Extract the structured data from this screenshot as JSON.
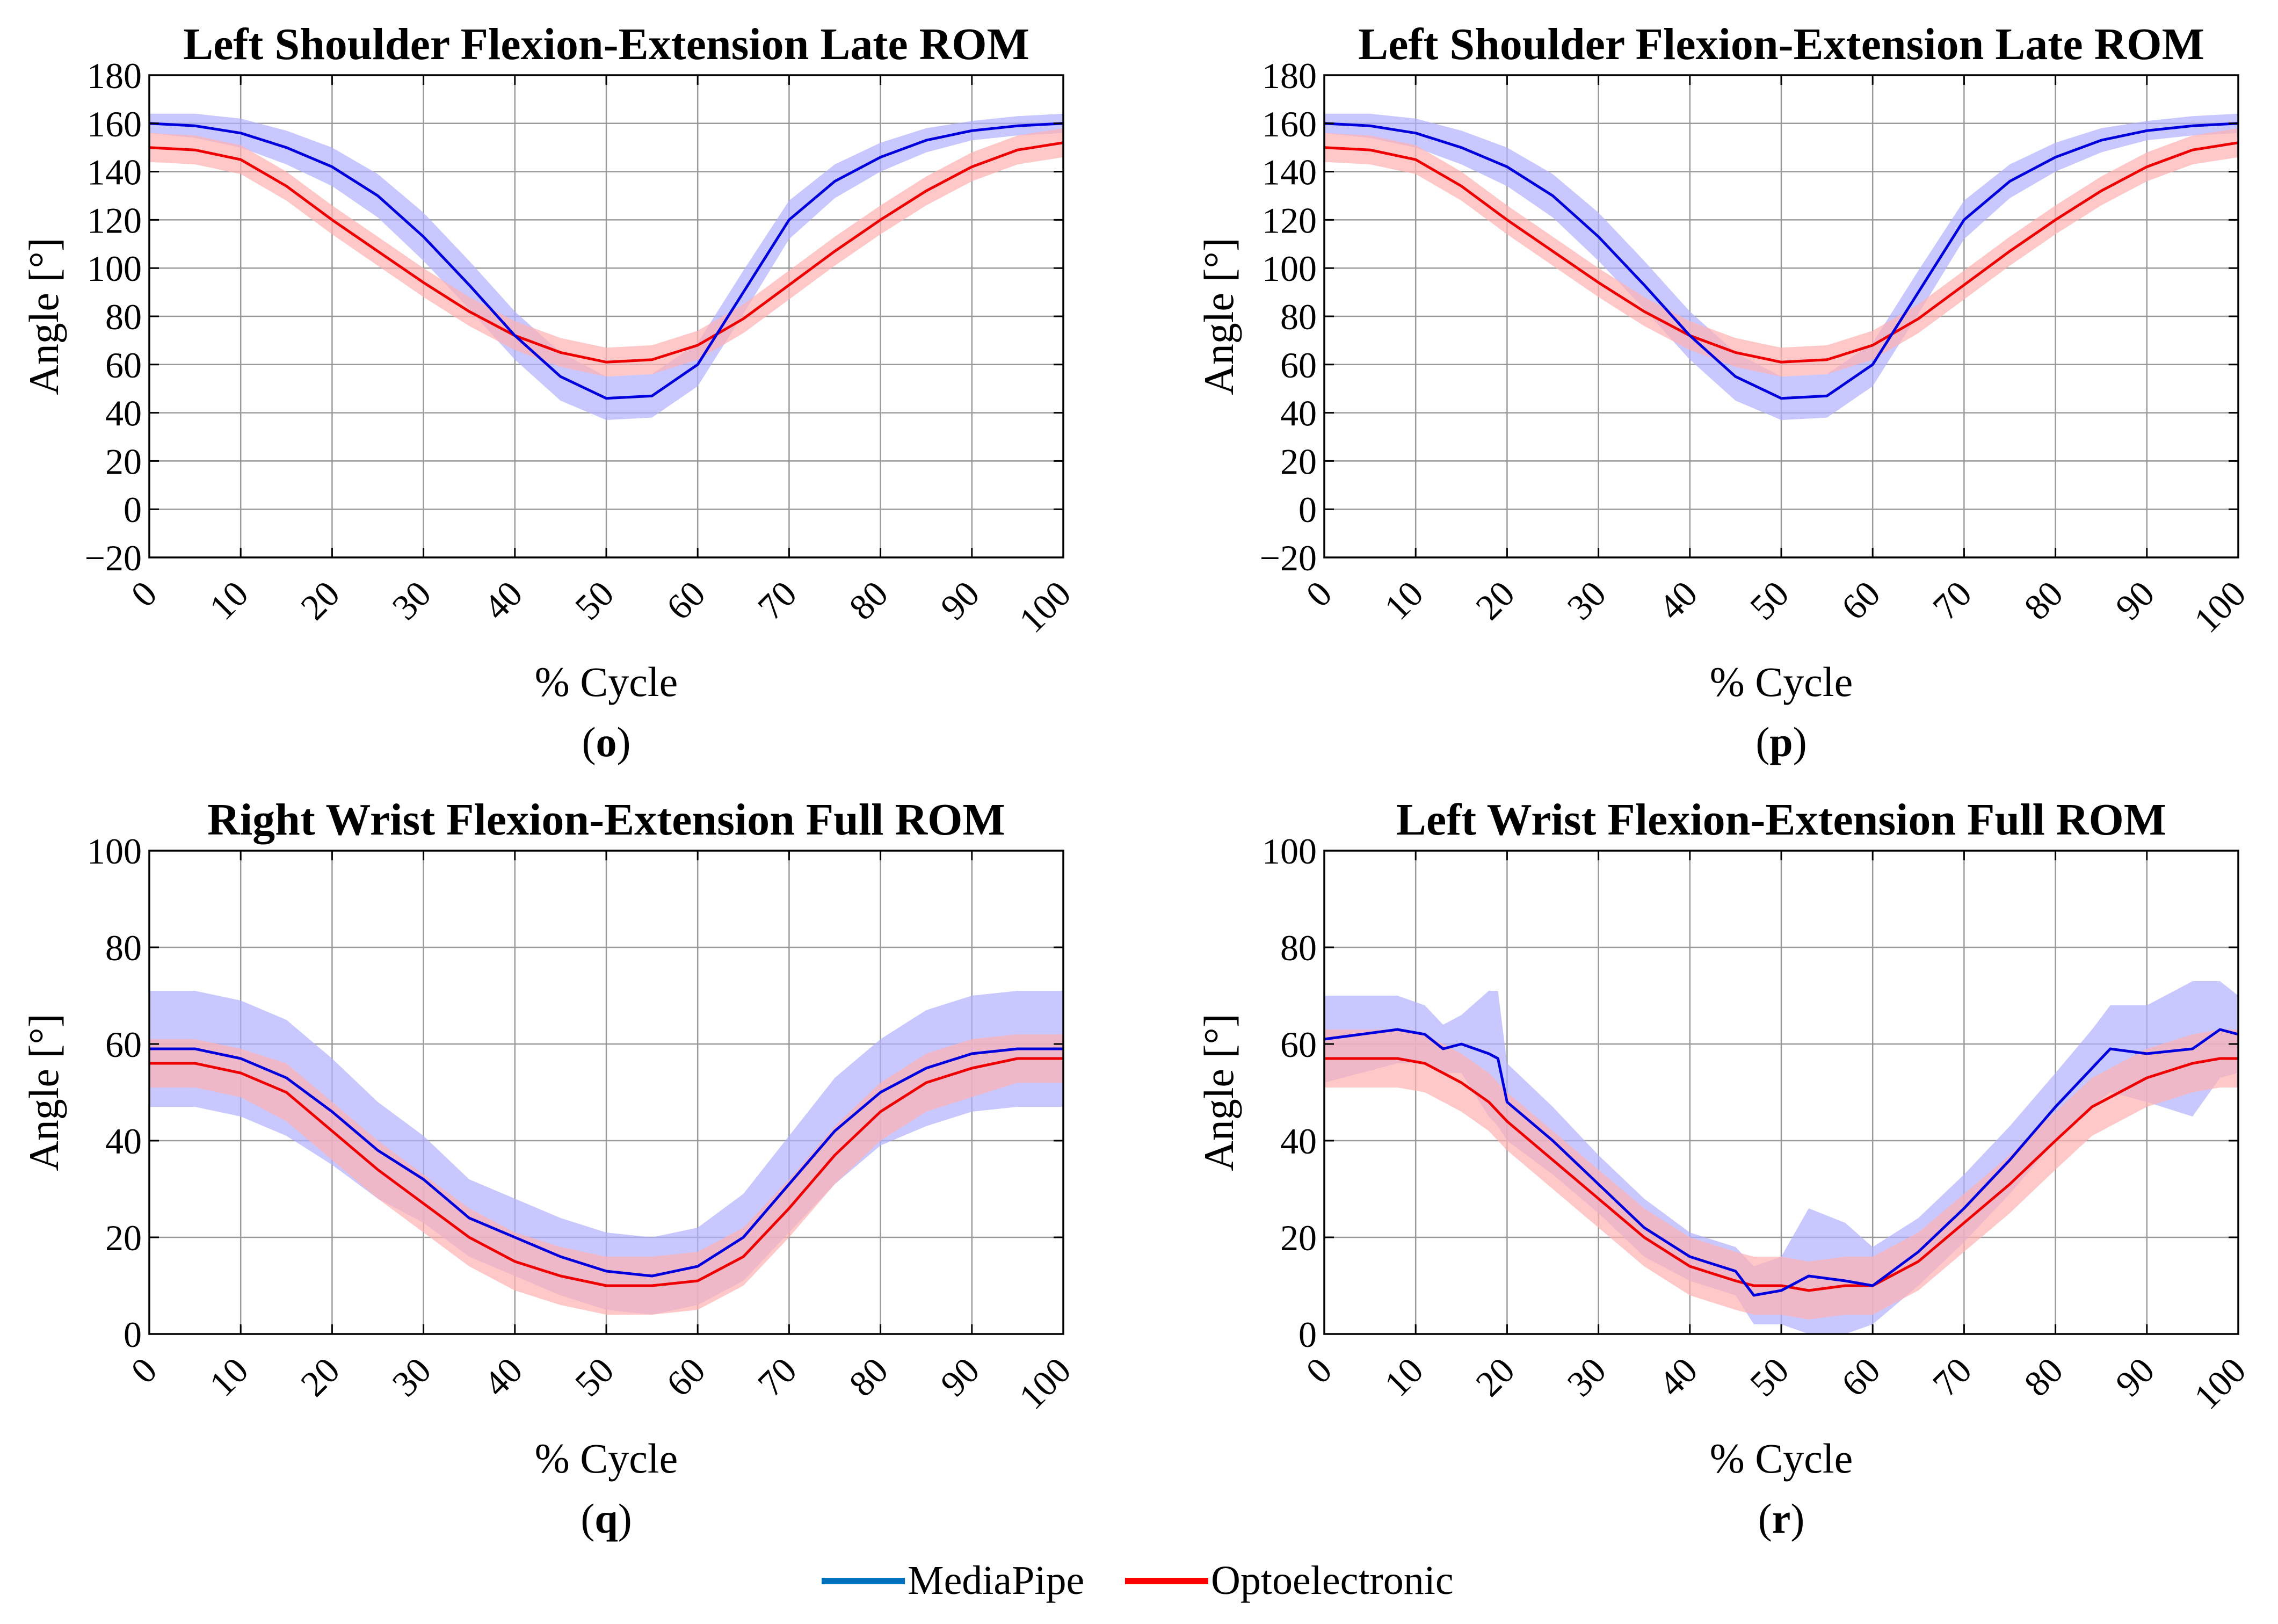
{
  "legend": {
    "entries": [
      {
        "label": "MediaPipe",
        "color": "#0072BD"
      },
      {
        "label": "Optoelectronic",
        "color": "#FF0000"
      }
    ]
  },
  "chart_data": [
    {
      "type": "line",
      "panel_label": "o",
      "title": "Left Shoulder Flexion-Extension Late ROM",
      "xlabel": "% Cycle",
      "ylabel": "Angle [°]",
      "xlim": [
        0,
        100
      ],
      "ylim": [
        -20,
        180
      ],
      "xticks": [
        0,
        10,
        20,
        30,
        40,
        50,
        60,
        70,
        80,
        90,
        100
      ],
      "yticks": [
        -20,
        0,
        20,
        40,
        60,
        80,
        100,
        120,
        140,
        160,
        180
      ],
      "grid": true,
      "x": [
        0,
        5,
        10,
        15,
        20,
        25,
        30,
        35,
        40,
        45,
        50,
        55,
        60,
        65,
        70,
        75,
        80,
        85,
        90,
        95,
        100
      ],
      "series": [
        {
          "name": "MediaPipe",
          "color": "#0000DD",
          "band_color": "#B0B0FF",
          "values": [
            160,
            159,
            156,
            150,
            142,
            130,
            113,
            93,
            72,
            55,
            46,
            47,
            60,
            90,
            120,
            136,
            146,
            153,
            157,
            159,
            160
          ],
          "band": [
            4,
            5,
            6,
            7,
            8,
            9,
            10,
            10,
            10,
            10,
            9,
            9,
            9,
            9,
            8,
            7,
            6,
            5,
            4,
            4,
            4
          ]
        },
        {
          "name": "Optoelectronic",
          "color": "#EE0000",
          "band_color": "#FFB0B0",
          "values": [
            150,
            149,
            145,
            134,
            120,
            107,
            94,
            82,
            72,
            65,
            61,
            62,
            68,
            79,
            93,
            107,
            120,
            132,
            142,
            149,
            152
          ],
          "band": [
            6,
            6,
            6,
            6,
            6,
            6,
            6,
            6,
            6,
            6,
            6,
            6,
            6,
            6,
            6,
            6,
            6,
            6,
            6,
            6,
            6
          ]
        }
      ]
    },
    {
      "type": "line",
      "panel_label": "p",
      "title": "Left Shoulder Flexion-Extension Late ROM",
      "xlabel": "% Cycle",
      "ylabel": "Angle [°]",
      "xlim": [
        0,
        100
      ],
      "ylim": [
        -20,
        180
      ],
      "xticks": [
        0,
        10,
        20,
        30,
        40,
        50,
        60,
        70,
        80,
        90,
        100
      ],
      "yticks": [
        -20,
        0,
        20,
        40,
        60,
        80,
        100,
        120,
        140,
        160,
        180
      ],
      "grid": true,
      "x": [
        0,
        5,
        10,
        15,
        20,
        25,
        30,
        35,
        40,
        45,
        50,
        55,
        60,
        65,
        70,
        75,
        80,
        85,
        90,
        95,
        100
      ],
      "series": [
        {
          "name": "MediaPipe",
          "color": "#0000DD",
          "band_color": "#B0B0FF",
          "values": [
            160,
            159,
            156,
            150,
            142,
            130,
            113,
            93,
            72,
            55,
            46,
            47,
            60,
            90,
            120,
            136,
            146,
            153,
            157,
            159,
            160
          ],
          "band": [
            4,
            5,
            6,
            7,
            8,
            9,
            10,
            10,
            10,
            10,
            9,
            9,
            9,
            9,
            8,
            7,
            6,
            5,
            4,
            4,
            4
          ]
        },
        {
          "name": "Optoelectronic",
          "color": "#EE0000",
          "band_color": "#FFB0B0",
          "values": [
            150,
            149,
            145,
            134,
            120,
            107,
            94,
            82,
            72,
            65,
            61,
            62,
            68,
            79,
            93,
            107,
            120,
            132,
            142,
            149,
            152
          ],
          "band": [
            6,
            6,
            6,
            6,
            6,
            6,
            6,
            6,
            6,
            6,
            6,
            6,
            6,
            6,
            6,
            6,
            6,
            6,
            6,
            6,
            6
          ]
        }
      ]
    },
    {
      "type": "line",
      "panel_label": "q",
      "title": "Right Wrist Flexion-Extension Full ROM",
      "xlabel": "% Cycle",
      "ylabel": "Angle [°]",
      "xlim": [
        0,
        100
      ],
      "ylim": [
        0,
        100
      ],
      "xticks": [
        0,
        10,
        20,
        30,
        40,
        50,
        60,
        70,
        80,
        90,
        100
      ],
      "yticks": [
        0,
        20,
        40,
        60,
        80,
        100
      ],
      "grid": true,
      "x": [
        0,
        5,
        10,
        15,
        20,
        25,
        30,
        35,
        40,
        45,
        50,
        55,
        60,
        65,
        70,
        75,
        80,
        85,
        90,
        95,
        100
      ],
      "series": [
        {
          "name": "MediaPipe",
          "color": "#0000DD",
          "band_color": "#B0B0FF",
          "values": [
            59,
            59,
            57,
            53,
            46,
            38,
            32,
            24,
            20,
            16,
            13,
            12,
            14,
            20,
            31,
            42,
            50,
            55,
            58,
            59,
            59
          ],
          "band": [
            12,
            12,
            12,
            12,
            11,
            10,
            9,
            8,
            8,
            8,
            8,
            8,
            8,
            9,
            10,
            11,
            11,
            12,
            12,
            12,
            12
          ]
        },
        {
          "name": "Optoelectronic",
          "color": "#EE0000",
          "band_color": "#FFB0B0",
          "values": [
            56,
            56,
            54,
            50,
            42,
            34,
            27,
            20,
            15,
            12,
            10,
            10,
            11,
            16,
            26,
            37,
            46,
            52,
            55,
            57,
            57
          ],
          "band": [
            5,
            5,
            5,
            6,
            6,
            6,
            6,
            6,
            6,
            6,
            6,
            6,
            6,
            6,
            6,
            6,
            6,
            6,
            6,
            5,
            5
          ]
        }
      ]
    },
    {
      "type": "line",
      "panel_label": "r",
      "title": "Left Wrist Flexion-Extension Full ROM",
      "xlabel": "% Cycle",
      "ylabel": "Angle [°]",
      "xlim": [
        0,
        100
      ],
      "ylim": [
        0,
        100
      ],
      "xticks": [
        0,
        10,
        20,
        30,
        40,
        50,
        60,
        70,
        80,
        90,
        100
      ],
      "yticks": [
        0,
        20,
        40,
        60,
        80,
        100
      ],
      "grid": true,
      "x": [
        0,
        4,
        8,
        11,
        13,
        15,
        18,
        19,
        20,
        25,
        30,
        35,
        40,
        45,
        47,
        50,
        53,
        57,
        60,
        65,
        70,
        75,
        80,
        84,
        86,
        90,
        95,
        98,
        100
      ],
      "series": [
        {
          "name": "MediaPipe",
          "color": "#0000DD",
          "band_color": "#B0B0FF",
          "values": [
            61,
            62,
            63,
            62,
            59,
            60,
            58,
            57,
            48,
            40,
            31,
            22,
            16,
            13,
            8,
            9,
            12,
            11,
            10,
            17,
            26,
            36,
            47,
            55,
            59,
            58,
            59,
            63,
            62
          ],
          "band": [
            9,
            8,
            7,
            6,
            5,
            6,
            13,
            14,
            8,
            7,
            6,
            6,
            5,
            5,
            6,
            7,
            14,
            12,
            8,
            7,
            7,
            7,
            7,
            8,
            9,
            10,
            14,
            10,
            8
          ]
        },
        {
          "name": "Optoelectronic",
          "color": "#EE0000",
          "band_color": "#FFB0B0",
          "values": [
            57,
            57,
            57,
            56,
            54,
            52,
            48,
            46,
            44,
            36,
            28,
            20,
            14,
            11,
            10,
            10,
            9,
            10,
            10,
            15,
            23,
            31,
            40,
            47,
            49,
            53,
            56,
            57,
            57
          ],
          "band": [
            6,
            6,
            6,
            6,
            6,
            6,
            6,
            6,
            6,
            6,
            6,
            6,
            6,
            6,
            6,
            6,
            6,
            6,
            6,
            6,
            6,
            6,
            6,
            6,
            6,
            6,
            6,
            6,
            6
          ]
        }
      ]
    }
  ]
}
